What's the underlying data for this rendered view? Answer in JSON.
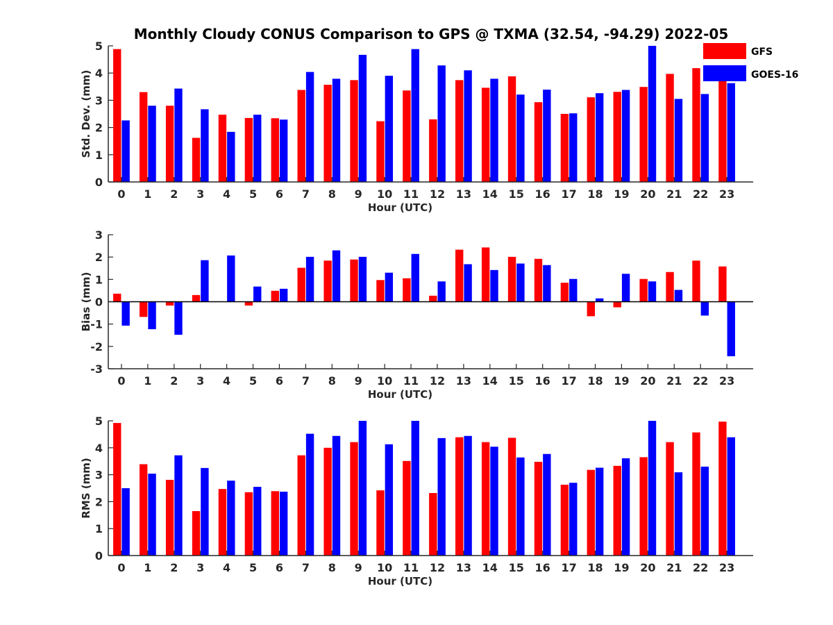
{
  "title": "Monthly Cloudy CONUS Comparison to GPS @ TXMA (32.54, -94.29) 2022-05",
  "legend": [
    {
      "name": "GFS",
      "color": "#ff0000"
    },
    {
      "name": "GOES-16",
      "color": "#0000ff"
    }
  ],
  "chart_data": [
    {
      "type": "bar",
      "title": "Monthly Cloudy CONUS Comparison to GPS @ TXMA (32.54, -94.29) 2022-05",
      "xlabel": "Hour (UTC)",
      "ylabel": "Std. Dev. (mm)",
      "ylim": [
        0,
        5
      ],
      "yticks": [
        0,
        1,
        2,
        3,
        4,
        5
      ],
      "categories": [
        "0",
        "1",
        "2",
        "3",
        "4",
        "5",
        "6",
        "7",
        "8",
        "9",
        "10",
        "11",
        "12",
        "13",
        "14",
        "15",
        "16",
        "17",
        "18",
        "19",
        "20",
        "21",
        "22",
        "23"
      ],
      "series": [
        {
          "name": "GFS",
          "color": "#ff0000",
          "values": [
            4.88,
            3.3,
            2.8,
            1.62,
            2.47,
            2.35,
            2.34,
            3.38,
            3.57,
            3.74,
            2.23,
            3.36,
            2.3,
            3.74,
            3.46,
            3.88,
            2.93,
            2.5,
            3.11,
            3.31,
            3.49,
            3.97,
            4.18,
            3.98
          ]
        },
        {
          "name": "GOES-16",
          "color": "#0000ff",
          "values": [
            2.26,
            2.8,
            3.43,
            2.67,
            1.84,
            2.47,
            2.29,
            4.04,
            3.79,
            4.67,
            3.9,
            4.88,
            4.28,
            4.1,
            3.79,
            3.21,
            3.39,
            2.52,
            3.26,
            3.38,
            5.0,
            3.05,
            3.23,
            3.63
          ]
        }
      ]
    },
    {
      "type": "bar",
      "xlabel": "Hour (UTC)",
      "ylabel": "Bias (mm)",
      "ylim": [
        -3,
        3
      ],
      "yticks": [
        -3,
        -2,
        -1,
        0,
        1,
        2,
        3
      ],
      "categories": [
        "0",
        "1",
        "2",
        "3",
        "4",
        "5",
        "6",
        "7",
        "8",
        "9",
        "10",
        "11",
        "12",
        "13",
        "14",
        "15",
        "16",
        "17",
        "18",
        "19",
        "20",
        "21",
        "22",
        "23"
      ],
      "series": [
        {
          "name": "GFS",
          "color": "#ff0000",
          "values": [
            0.36,
            -0.68,
            -0.17,
            0.3,
            0.0,
            -0.17,
            0.49,
            1.52,
            1.84,
            1.89,
            0.97,
            1.05,
            0.27,
            2.33,
            2.43,
            2.01,
            1.92,
            0.85,
            -0.65,
            -0.25,
            1.02,
            1.33,
            1.84,
            1.58
          ]
        },
        {
          "name": "GOES-16",
          "color": "#0000ff",
          "values": [
            -1.07,
            -1.23,
            -1.48,
            1.86,
            2.07,
            0.68,
            0.58,
            2.01,
            2.3,
            2.01,
            1.3,
            2.14,
            0.91,
            1.68,
            1.42,
            1.71,
            1.64,
            1.02,
            0.15,
            1.25,
            0.91,
            0.53,
            -0.62,
            -2.44
          ]
        }
      ]
    },
    {
      "type": "bar",
      "xlabel": "Hour (UTC)",
      "ylabel": "RMS (mm)",
      "ylim": [
        0,
        5
      ],
      "yticks": [
        0,
        1,
        2,
        3,
        4,
        5
      ],
      "categories": [
        "0",
        "1",
        "2",
        "3",
        "4",
        "5",
        "6",
        "7",
        "8",
        "9",
        "10",
        "11",
        "12",
        "13",
        "14",
        "15",
        "16",
        "17",
        "18",
        "19",
        "20",
        "21",
        "22",
        "23"
      ],
      "series": [
        {
          "name": "GFS",
          "color": "#ff0000",
          "values": [
            4.92,
            3.39,
            2.81,
            1.65,
            2.47,
            2.35,
            2.39,
            3.72,
            4.0,
            4.21,
            2.42,
            3.51,
            2.32,
            4.39,
            4.21,
            4.37,
            3.48,
            2.63,
            3.18,
            3.33,
            3.65,
            4.21,
            4.57,
            4.97
          ]
        },
        {
          "name": "GOES-16",
          "color": "#0000ff",
          "values": [
            2.5,
            3.04,
            3.72,
            3.25,
            2.78,
            2.55,
            2.37,
            4.52,
            4.44,
            5.0,
            4.13,
            5.0,
            4.36,
            4.44,
            4.04,
            3.64,
            3.77,
            2.7,
            3.26,
            3.61,
            5.0,
            3.09,
            3.3,
            4.39
          ]
        }
      ]
    }
  ]
}
